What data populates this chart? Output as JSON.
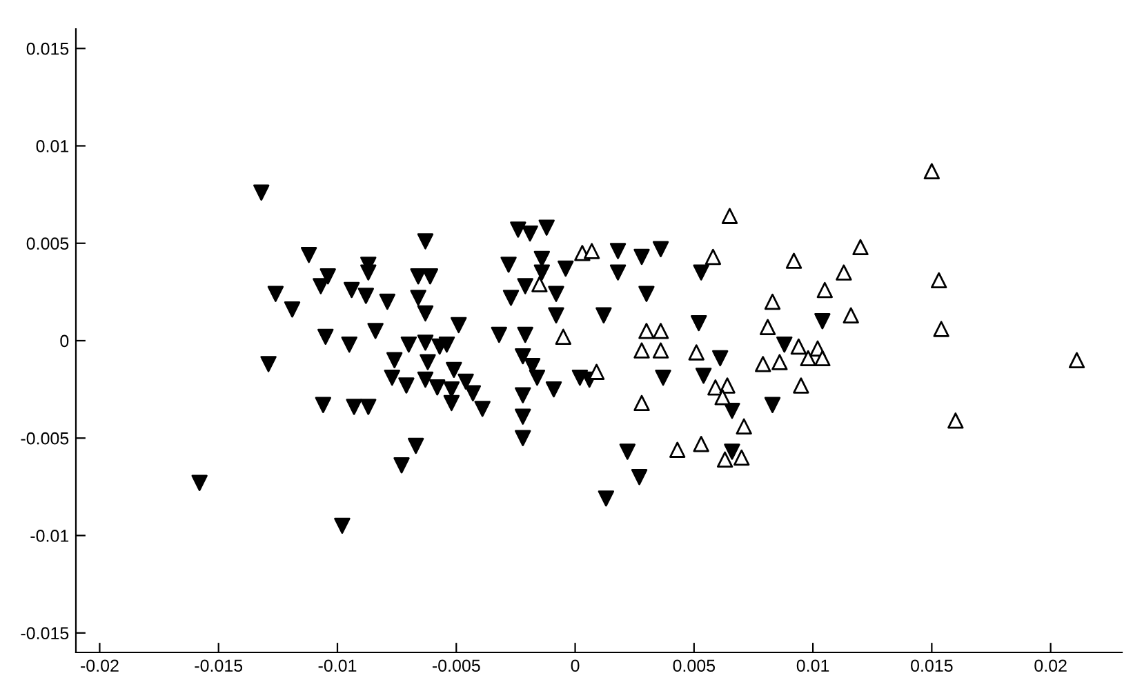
{
  "chart_data": {
    "type": "scatter",
    "xlim": [
      -0.021,
      0.023
    ],
    "ylim": [
      -0.016,
      0.016
    ],
    "xticks": [
      -0.02,
      -0.015,
      -0.01,
      -0.005,
      0,
      0.005,
      0.01,
      0.015,
      0.02
    ],
    "yticks": [
      -0.015,
      -0.01,
      -0.005,
      0,
      0.005,
      0.01,
      0.015
    ],
    "grid": false,
    "legend": false,
    "series": [
      {
        "color": "#000000",
        "marker": "triangle_down",
        "x": [
          -0.0132,
          -0.0129,
          -0.0126,
          -0.0119,
          -0.0112,
          -0.0107,
          -0.0104,
          -0.0094,
          -0.0088,
          -0.0087,
          -0.0087,
          -0.0079,
          -0.0066,
          -0.0061,
          -0.0066,
          -0.0063,
          -0.0063,
          -0.0049,
          -0.0032,
          -0.0028,
          -0.0027,
          -0.0024,
          -0.0105,
          -0.0095,
          -0.0084,
          -0.007,
          -0.0063,
          -0.0057,
          -0.0054,
          -0.0076,
          -0.0062,
          -0.0051,
          -0.0077,
          -0.0071,
          -0.0063,
          -0.0058,
          -0.0052,
          -0.0046,
          -0.0043,
          -0.0052,
          -0.0039,
          -0.0106,
          -0.0093,
          -0.0087,
          -0.0067,
          -0.0073,
          -0.0158,
          -0.0098,
          -0.0021,
          -0.0022,
          -0.0018,
          -0.0016,
          -0.0009,
          -0.0022,
          -0.0022,
          -0.0022,
          0.0002,
          0.0006,
          0.0037,
          0.0054,
          0.0061,
          0.0088,
          0.0066,
          0.0083,
          0.0022,
          0.0027,
          0.0013,
          0.0066,
          -0.0019,
          -0.0012,
          -0.0014,
          -0.0004,
          -0.0014,
          -0.0021,
          -0.0008,
          -0.0008,
          0.0012,
          0.0018,
          0.0028,
          0.0036,
          0.0018,
          0.003,
          0.0053,
          0.0052,
          0.0104
        ],
        "values": [
          0.0076,
          -0.0012,
          0.0024,
          0.0016,
          0.0044,
          0.0028,
          0.0033,
          0.0026,
          0.0023,
          0.0039,
          0.0035,
          0.002,
          0.0033,
          0.0033,
          0.0022,
          0.0014,
          0.0051,
          0.0008,
          0.0003,
          0.0039,
          0.0022,
          0.0057,
          0.0002,
          -0.0002,
          0.0005,
          -0.0002,
          -0.0001,
          -0.0003,
          -0.0002,
          -0.001,
          -0.0011,
          -0.0015,
          -0.0019,
          -0.0023,
          -0.002,
          -0.0024,
          -0.0025,
          -0.0021,
          -0.0027,
          -0.0032,
          -0.0035,
          -0.0033,
          -0.0034,
          -0.0034,
          -0.0054,
          -0.0064,
          -0.0073,
          -0.0095,
          0.0003,
          -0.0008,
          -0.0013,
          -0.0019,
          -0.0025,
          -0.0028,
          -0.0039,
          -0.005,
          -0.0019,
          -0.002,
          -0.0019,
          -0.0018,
          -0.0009,
          -0.0002,
          -0.0036,
          -0.0033,
          -0.0057,
          -0.007,
          -0.0081,
          -0.0057,
          0.0055,
          0.0058,
          0.0042,
          0.0037,
          0.0035,
          0.0028,
          0.0024,
          0.0013,
          0.0013,
          0.0046,
          0.0043,
          0.0047,
          0.0035,
          0.0024,
          0.0035,
          0.0009,
          0.001
        ]
      },
      {
        "color": "#000000",
        "marker": "triangle",
        "x": [
          0.0065,
          0.0003,
          0.0007,
          0.0058,
          0.0092,
          0.0113,
          0.012,
          0.0105,
          0.0083,
          0.0081,
          0.0116,
          -0.0015,
          -0.0005,
          0.003,
          0.0036,
          0.0028,
          0.0036,
          0.0051,
          0.0094,
          0.0102,
          0.0098,
          0.0104,
          0.0079,
          0.0086,
          0.0059,
          0.0064,
          0.0062,
          0.0095,
          0.0071,
          0.0043,
          0.0053,
          0.0063,
          0.007,
          0.0009,
          0.0028,
          0.015,
          0.0153,
          0.0154,
          0.0211,
          0.016
        ],
        "values": [
          0.0064,
          0.0045,
          0.0046,
          0.0043,
          0.0041,
          0.0035,
          0.0048,
          0.0026,
          0.002,
          0.0007,
          0.0013,
          0.0029,
          0.0002,
          0.0005,
          0.0005,
          -0.0005,
          -0.0005,
          -0.0006,
          -0.0003,
          -0.0004,
          -0.0009,
          -0.0009,
          -0.0012,
          -0.0011,
          -0.0024,
          -0.0023,
          -0.0029,
          -0.0023,
          -0.0044,
          -0.0056,
          -0.0053,
          -0.0061,
          -0.006,
          -0.0016,
          -0.0032,
          0.0087,
          0.0031,
          0.0006,
          -0.001,
          -0.0041
        ]
      }
    ]
  }
}
